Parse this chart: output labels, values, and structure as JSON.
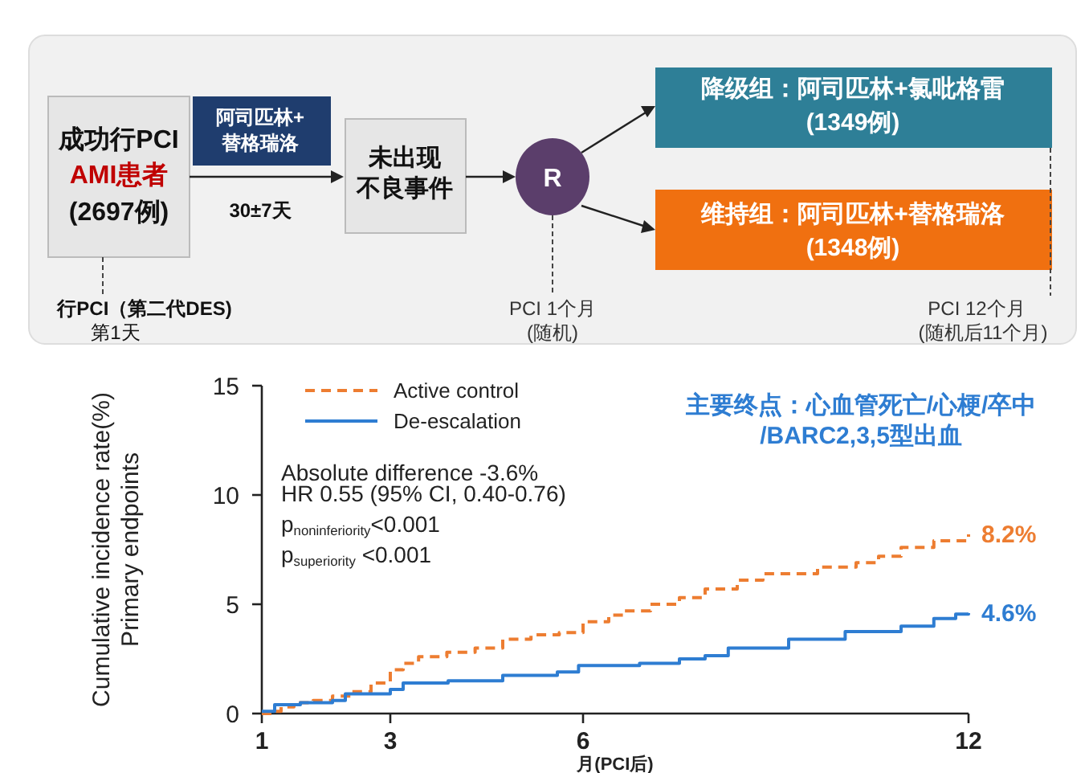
{
  "chart_data": [
    {
      "type": "other",
      "annotations": [
        "成功行PCI",
        "AMI患者",
        "(2697例)",
        "阿司匹林+",
        "替格瑞洛",
        "30±7天",
        "未出现",
        "不良事件",
        "R",
        "降级组：阿司匹林+氯吡格雷",
        "(1349例)",
        "维持组：阿司匹林+替格瑞洛",
        "(1348例)",
        "行PCI（第二代DES)",
        "第1天",
        "PCI 1个月",
        "(随机)",
        "PCI 12个月",
        "(随机后11个月)"
      ]
    },
    {
      "type": "step",
      "title": "主要终点：心血管死亡/心梗/卒中\n/BARC2,3,5型出血",
      "xlabel": "月(PCI后)",
      "ylabel": "Cumulative incidence rate(%)\nPrimary endpoints",
      "xlim": [
        1,
        12
      ],
      "xticks": [
        1,
        3,
        6,
        12
      ],
      "ylim": [
        0,
        15
      ],
      "yticks": [
        0,
        5,
        10,
        15
      ],
      "grid": false,
      "legend": "top",
      "series": [
        {
          "name": "Active control",
          "color": "#ed7d31",
          "line_style": "dashed",
          "x": [
            1,
            1.15,
            1.3,
            1.5,
            1.8,
            2.1,
            2.4,
            2.7,
            3,
            3.2,
            3.44,
            3.88,
            4.32,
            4.75,
            5.19,
            5.63,
            6,
            6.4,
            6.62,
            7.05,
            7.5,
            7.9,
            8.4,
            8.8,
            9.65,
            10.25,
            10.6,
            10.95,
            11.46,
            12
          ],
          "values": [
            0,
            0.1,
            0.3,
            0.5,
            0.6,
            0.8,
            1.0,
            1.4,
            2.0,
            2.3,
            2.6,
            2.8,
            3.0,
            3.4,
            3.6,
            3.7,
            4.2,
            4.5,
            4.7,
            5.0,
            5.3,
            5.7,
            6.1,
            6.4,
            6.7,
            6.9,
            7.2,
            7.6,
            7.9,
            8.2
          ]
        },
        {
          "name": "De-escalation",
          "color": "#2e7dd2",
          "line_style": "solid",
          "x": [
            1,
            1.2,
            1.6,
            2.1,
            2.3,
            3,
            3.2,
            3.9,
            4.75,
            5.6,
            5.93,
            6.88,
            7.5,
            7.9,
            8.26,
            9.2,
            10.08,
            10.95,
            11.46,
            11.8,
            12
          ],
          "values": [
            0.1,
            0.4,
            0.5,
            0.6,
            0.9,
            1.1,
            1.4,
            1.5,
            1.75,
            1.9,
            2.2,
            2.3,
            2.5,
            2.65,
            3.0,
            3.4,
            3.75,
            4.0,
            4.35,
            4.55,
            4.6
          ]
        }
      ],
      "annotations": [
        "Absolute difference -3.6%",
        "HR 0.55 (95% CI, 0.40-0.76)",
        "p$_{noninferiority}$<0.001",
        "p$_{superiority}$ <0.001",
        {
          "text": "8.2%",
          "x": 12,
          "y": 8.2
        },
        {
          "text": "4.6%",
          "x": 12,
          "y": 4.6
        }
      ]
    }
  ]
}
